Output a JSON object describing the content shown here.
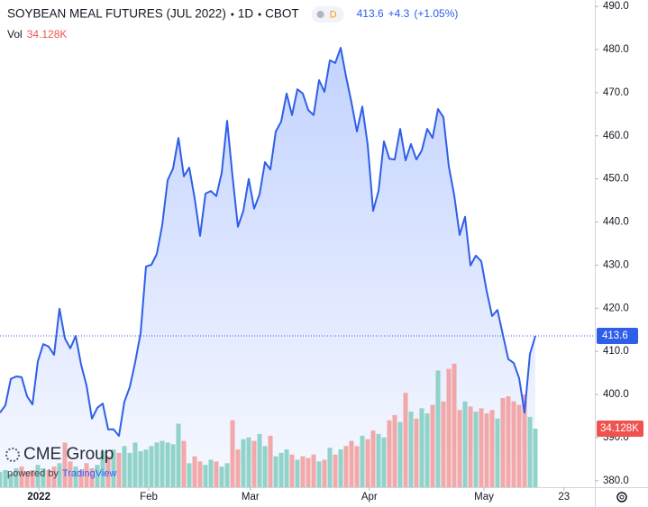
{
  "chart_data": {
    "type": "area",
    "title": "SOYBEAN MEAL FUTURES (JUL 2022)",
    "interval": "1D",
    "exchange": "CBOT",
    "badge": "D",
    "change": "+4.3",
    "change_percent": "(+1.05%)",
    "color": "#2f5fe8",
    "values": [
      395.8,
      397.5,
      403.6,
      404.2,
      404,
      399.6,
      397.7,
      407.7,
      411.7,
      411.1,
      409.2,
      419.9,
      413,
      410.7,
      413.6,
      406.9,
      402.1,
      394.4,
      396.9,
      397.9,
      391.9,
      391.9,
      390.4,
      398.3,
      401.7,
      407.5,
      414.2,
      429.7,
      430.1,
      432.6,
      439.3,
      449.7,
      452.4,
      459.5,
      450.6,
      452.6,
      445.5,
      436.8,
      446.6,
      447.2,
      446,
      451.4,
      463.5,
      450.6,
      438.9,
      442.6,
      450,
      443.1,
      446.4,
      453.9,
      452.2,
      461,
      463.3,
      469.8,
      464.8,
      470.8,
      469.8,
      466,
      464.8,
      472.9,
      470.2,
      477.5,
      476.9,
      480.4,
      473.7,
      467.7,
      461,
      466.8,
      457.9,
      442.6,
      447.2,
      458.7,
      454.7,
      454.5,
      461.6,
      454.3,
      458.1,
      454.5,
      456.6,
      461.6,
      459.5,
      466.2,
      464.3,
      452.9,
      446.2,
      437,
      441.2,
      429.9,
      432.2,
      430.9,
      424,
      418.2,
      419.6,
      413.8,
      408.2,
      407.3,
      403.8,
      395.8,
      409.4,
      413.6
    ],
    "volume": {
      "label": "Vol",
      "last_label": "34.128K",
      "axis": "y2",
      "up_color": "#7fcdbf",
      "down_color": "#f29a9a",
      "values": [
        9,
        10,
        8,
        11,
        12,
        9,
        10,
        13,
        11,
        10,
        12,
        14,
        26,
        15,
        12,
        10,
        14,
        11,
        13,
        21,
        18,
        22,
        20,
        24,
        20,
        26,
        21,
        22,
        24,
        26,
        27,
        26,
        25,
        37,
        27,
        14,
        18,
        15,
        13,
        16,
        15,
        12,
        14,
        39,
        22,
        28,
        29,
        27,
        31,
        24,
        30,
        18,
        20,
        22,
        19,
        16,
        18,
        17,
        19,
        15,
        16,
        23,
        19,
        22,
        24,
        27,
        24,
        30,
        28,
        33,
        31,
        29,
        39,
        42,
        38,
        55,
        44,
        40,
        46,
        43,
        48,
        68,
        50,
        69,
        72,
        45,
        50,
        47,
        44,
        46,
        43,
        45,
        40,
        52,
        53,
        50,
        48,
        54,
        41,
        34.128
      ]
    },
    "xlim": [
      0,
      110
    ],
    "xticks": [
      {
        "value": 7.2,
        "label": "2022"
      },
      {
        "value": 27.5,
        "label": "Feb"
      },
      {
        "value": 46.3,
        "label": "Mar"
      },
      {
        "value": 68.3,
        "label": "Apr"
      },
      {
        "value": 89.5,
        "label": "May"
      },
      {
        "value": 104.3,
        "label": "23"
      }
    ],
    "ylim": [
      378.5,
      491.5
    ],
    "yticks": [
      {
        "value": 380,
        "label": "380.0"
      },
      {
        "value": 390,
        "label": "390.0"
      },
      {
        "value": 400,
        "label": "400.0"
      },
      {
        "value": 410,
        "label": "410.0"
      },
      {
        "value": 420,
        "label": "420.0"
      },
      {
        "value": 430,
        "label": "430.0"
      },
      {
        "value": 440,
        "label": "440.0"
      },
      {
        "value": 450,
        "label": "450.0"
      },
      {
        "value": 460,
        "label": "460.0"
      },
      {
        "value": 470,
        "label": "470.0"
      },
      {
        "value": 480,
        "label": "480.0"
      },
      {
        "value": 490,
        "label": "490.0"
      }
    ],
    "y2lim": [
      0,
      284
    ],
    "grid": false,
    "logo": {
      "name": "CME Group",
      "powered": "powered by",
      "provider": "TradingView"
    }
  }
}
